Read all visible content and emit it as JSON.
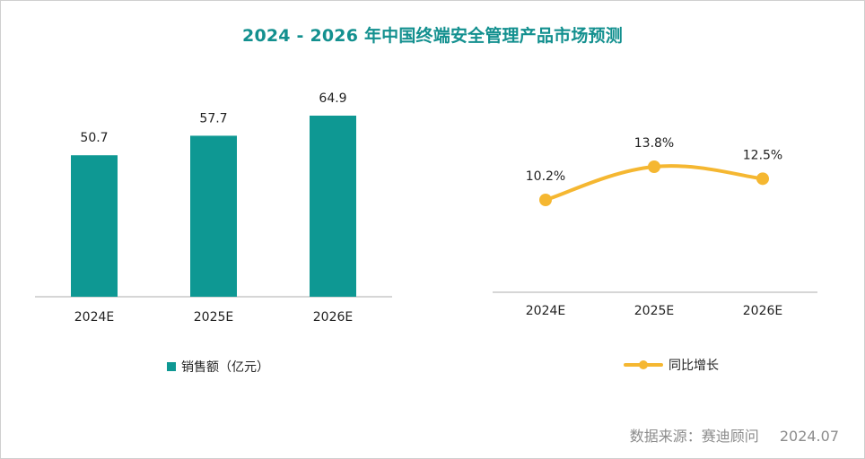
{
  "title": "2024 - 2026 年中国终端安全管理产品市场预测",
  "colors": {
    "bar": "#0e9893",
    "line": "#f5b731",
    "title": "#13908f",
    "axis": "#c8c8c8"
  },
  "chart_data": [
    {
      "type": "bar",
      "categories": [
        "2024E",
        "2025E",
        "2026E"
      ],
      "series": [
        {
          "name": "销售额（亿元）",
          "values": [
            50.7,
            57.7,
            64.9
          ]
        }
      ],
      "data_labels": [
        "50.7",
        "57.7",
        "64.9"
      ],
      "ylim": [
        0,
        64.9
      ],
      "legend": "bottom"
    },
    {
      "type": "line",
      "categories": [
        "2024E",
        "2025E",
        "2026E"
      ],
      "series": [
        {
          "name": "同比增长",
          "values": [
            10.2,
            13.8,
            12.5
          ]
        }
      ],
      "data_labels": [
        "10.2%",
        "13.8%",
        "12.5%"
      ],
      "ylim": [
        0,
        13.8
      ],
      "legend": "bottom"
    }
  ],
  "legend": {
    "bar_label": "销售额（亿元）",
    "line_label": "同比增长"
  },
  "source": {
    "label": "数据来源：赛迪顾问",
    "date": "2024.07"
  }
}
